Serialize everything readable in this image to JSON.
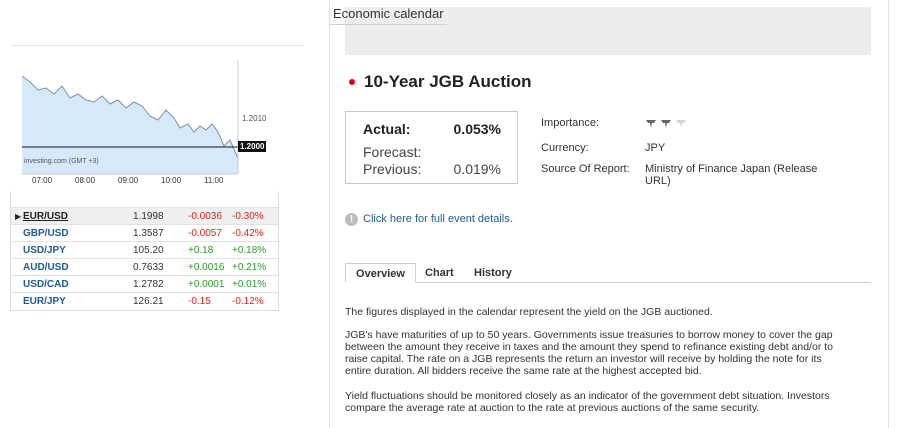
{
  "chart": {
    "watermark": "investing.com (GMT +3)",
    "level_label": "1.2010",
    "current_price": "1.2000",
    "time_labels": [
      "07:00",
      "08:00",
      "09:00",
      "10:00",
      "11:00"
    ]
  },
  "rates": [
    {
      "symbol": "EUR/USD",
      "price": "1.1998",
      "change": "-0.0036",
      "percent": "-0.30%",
      "dir": "neg",
      "selected": true
    },
    {
      "symbol": "GBP/USD",
      "price": "1.3587",
      "change": "-0.0057",
      "percent": "-0.42%",
      "dir": "neg"
    },
    {
      "symbol": "USD/JPY",
      "price": "105.20",
      "change": "+0.18",
      "percent": "+0.18%",
      "dir": "pos"
    },
    {
      "symbol": "AUD/USD",
      "price": "0.7633",
      "change": "+0.0016",
      "percent": "+0.21%",
      "dir": "pos"
    },
    {
      "symbol": "USD/CAD",
      "price": "1.2782",
      "change": "+0.0001",
      "percent": "+0.01%",
      "dir": "pos"
    },
    {
      "symbol": "EUR/JPY",
      "price": "126.21",
      "change": "-0.15",
      "percent": "-0.12%",
      "dir": "neg"
    }
  ],
  "panel": {
    "title": "Economic calendar"
  },
  "event": {
    "title": "10-Year JGB Auction",
    "actual_label": "Actual:",
    "actual_value": "0.053%",
    "forecast_label": "Forecast:",
    "forecast_value": "",
    "previous_label": "Previous:",
    "previous_value": "0.019%",
    "importance_label": "Importance:",
    "importance_level": 2,
    "currency_label": "Currency:",
    "currency_value": "JPY",
    "source_label": "Source Of Report:",
    "source_value": "Ministry of Finance Japan (Release URL)",
    "details_link": "Click here for full event details."
  },
  "tabs": [
    "Overview",
    "Chart",
    "History"
  ],
  "overview": {
    "p1": "The figures displayed in the calendar represent the yield on the JGB auctioned.",
    "p2": "JGB's have maturities of up to 50 years. Governments issue treasuries to borrow money to cover the gap between the amount they receive in taxes and the amount they spend to refinance existing debt and/or to raise capital. The rate on a JGB represents the return an investor will receive by holding the note for its entire duration. All bidders receive the same rate at the highest accepted bid.",
    "p3": "Yield fluctuations should be monitored closely as an indicator of the government debt situation. Investors compare the average rate at auction to the rate at previous auctions of the same security."
  },
  "colors": {
    "negative": "#e0231d",
    "positive": "#2a9a2a",
    "link": "#1f5a98",
    "flag_red": "#d7001d"
  }
}
